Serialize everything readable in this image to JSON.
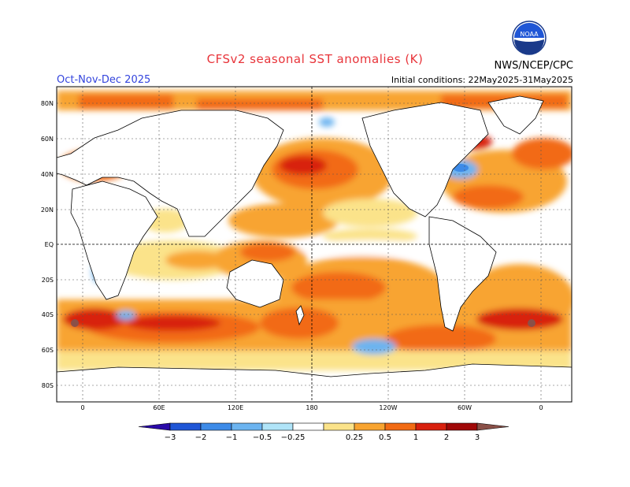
{
  "header": {
    "title": "CFSv2 seasonal SST anomalies (K)",
    "season": "Oct-Nov-Dec 2025",
    "initial_conditions": "Initial conditions: 22May2025-31May2025",
    "agency": "NWS/NCEP/CPC",
    "logo_text": "NOAA"
  },
  "map": {
    "lat_labels": [
      "80N",
      "60N",
      "40N",
      "20N",
      "EQ",
      "20S",
      "40S",
      "60S",
      "80S"
    ],
    "lon_labels": [
      "0",
      "60E",
      "120E",
      "180",
      "120W",
      "60W",
      "0"
    ]
  },
  "colorbar": {
    "labels": [
      "−3",
      "−2",
      "−1",
      "−0.5",
      "−0.25",
      "0.25",
      "0.5",
      "1",
      "2",
      "3"
    ],
    "colors": [
      "#2a0aa8",
      "#1f56d6",
      "#3d8be8",
      "#6cb4f0",
      "#b0e4f8",
      "#ffffff",
      "#fbe38a",
      "#f8a430",
      "#f26b14",
      "#d8200e",
      "#a00808",
      "#8a5048"
    ]
  },
  "colors": {
    "land": "#ffffff",
    "neutral_ocean": "#ffffff",
    "warm_light": "#fbe38a",
    "warm_mid": "#f8a430",
    "warm_strong": "#f26b14",
    "warm_hot": "#d8200e",
    "warm_extreme": "#a00808",
    "cool_light": "#6cb4f0",
    "cool_mid": "#3d8be8"
  }
}
